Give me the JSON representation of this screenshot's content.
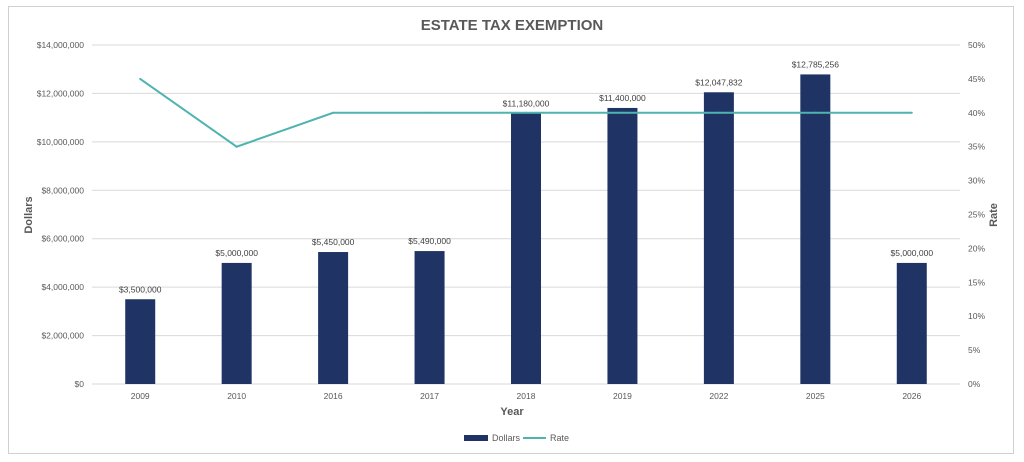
{
  "colors": {
    "bar": "#1f3464",
    "line": "#4fb3b0",
    "grid": "#d9d9d9",
    "text": "#595959"
  },
  "chart_data": {
    "type": "bar",
    "title": "ESTATE TAX EXEMPTION",
    "xlabel": "Year",
    "ylabel": "Dollars",
    "y2label": "Rate",
    "categories": [
      "2009",
      "2010",
      "2016",
      "2017",
      "2018",
      "2019",
      "2022",
      "2025",
      "2026"
    ],
    "series": [
      {
        "name": "Dollars",
        "type": "bar",
        "axis": "left",
        "values": [
          3500000,
          5000000,
          5450000,
          5490000,
          11180000,
          11400000,
          12047832,
          12785256,
          5000000
        ],
        "labels": [
          "$3,500,000",
          "$5,000,000",
          "$5,450,000",
          "$5,490,000",
          "$11,180,000",
          "$11,400,000",
          "$12,047,832",
          "$12,785,256",
          "$5,000,000"
        ]
      },
      {
        "name": "Rate",
        "type": "line",
        "axis": "right",
        "values": [
          0.45,
          0.35,
          0.4,
          0.4,
          0.4,
          0.4,
          0.4,
          0.4,
          0.4
        ]
      }
    ],
    "ylim": [
      0,
      14000000
    ],
    "y_ticks": [
      0,
      2000000,
      4000000,
      6000000,
      8000000,
      10000000,
      12000000,
      14000000
    ],
    "y_tick_labels": [
      "$0",
      "$2,000,000",
      "$4,000,000",
      "$6,000,000",
      "$8,000,000",
      "$10,000,000",
      "$12,000,000",
      "$14,000,000"
    ],
    "y2lim": [
      0,
      0.5
    ],
    "y2_ticks": [
      0,
      0.05,
      0.1,
      0.15,
      0.2,
      0.25,
      0.3,
      0.35,
      0.4,
      0.45,
      0.5
    ],
    "y2_tick_labels": [
      "0%",
      "5%",
      "10%",
      "15%",
      "20%",
      "25%",
      "30%",
      "35%",
      "40%",
      "45%",
      "50%"
    ],
    "grid": true,
    "legend": "bottom"
  }
}
